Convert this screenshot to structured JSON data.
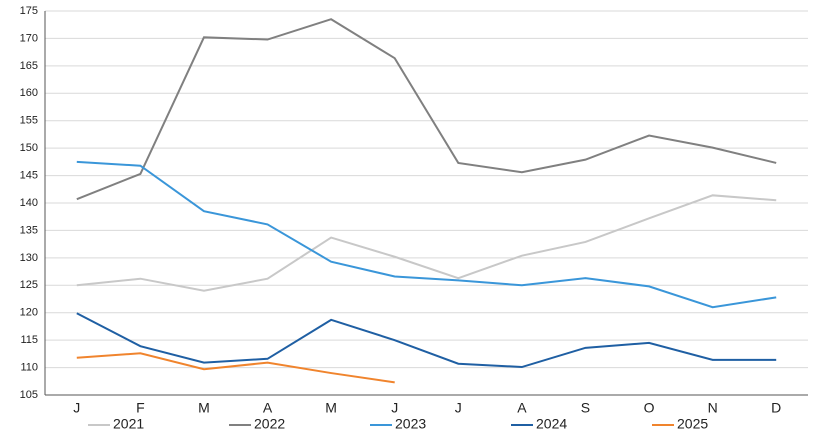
{
  "chart_data": {
    "type": "line",
    "categories": [
      "J",
      "F",
      "M",
      "A",
      "M",
      "J",
      "J",
      "A",
      "S",
      "O",
      "N",
      "D"
    ],
    "series": [
      {
        "name": "2021",
        "color": "#c8c8c8",
        "values": [
          125,
          126.2,
          124,
          126.2,
          133.7,
          130.2,
          126.3,
          130.4,
          132.9,
          137.2,
          141.4,
          140.5
        ]
      },
      {
        "name": "2022",
        "color": "#808080",
        "values": [
          140.7,
          145.3,
          170.2,
          169.8,
          173.5,
          166.4,
          147.3,
          145.6,
          147.9,
          152.3,
          150.1,
          147.3
        ]
      },
      {
        "name": "2023",
        "color": "#3a96d9",
        "values": [
          147.5,
          146.8,
          138.5,
          136.1,
          129.3,
          126.6,
          125.9,
          125,
          126.3,
          124.8,
          121,
          122.8
        ]
      },
      {
        "name": "2024",
        "color": "#1f5fa3",
        "values": [
          119.9,
          113.9,
          110.9,
          111.6,
          118.7,
          115,
          110.7,
          110.1,
          113.6,
          114.5,
          111.4,
          111.4
        ]
      },
      {
        "name": "2025",
        "color": "#f0842d",
        "values": [
          111.8,
          112.6,
          109.7,
          110.9,
          109,
          107.3,
          null,
          null,
          null,
          null,
          null,
          null
        ]
      }
    ],
    "ylim": [
      105,
      175
    ],
    "yticks": [
      105,
      110,
      115,
      120,
      125,
      130,
      135,
      140,
      145,
      150,
      155,
      160,
      165,
      170,
      175
    ],
    "grid": true,
    "legend": "bottom"
  }
}
